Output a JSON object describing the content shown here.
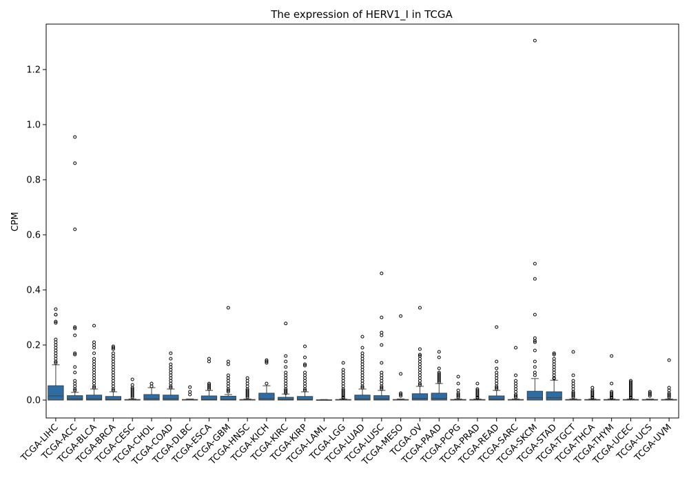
{
  "chart_data": {
    "type": "box",
    "title": "The expression of HERV1_I in TCGA",
    "xlabel": "",
    "ylabel": "CPM",
    "ylim": [
      -0.065,
      1.365
    ],
    "yticks": [
      0.0,
      0.2,
      0.4,
      0.6,
      0.8,
      1.0,
      1.2
    ],
    "ytick_labels": [
      "0.0",
      "0.2",
      "0.4",
      "0.6",
      "0.8",
      "1.0",
      "1.2"
    ],
    "grid": false,
    "box_color": "#2e6da4",
    "categories": [
      "TCGA-LIHC",
      "TCGA-ACC",
      "TCGA-BLCA",
      "TCGA-BRCA",
      "TCGA-CESC",
      "TCGA-CHOL",
      "TCGA-COAD",
      "TCGA-DLBC",
      "TCGA-ESCA",
      "TCGA-GBM",
      "TCGA-HNSC",
      "TCGA-KICH",
      "TCGA-KIRC",
      "TCGA-KIRP",
      "TCGA-LAML",
      "TCGA-LGG",
      "TCGA-LUAD",
      "TCGA-LUSC",
      "TCGA-MESO",
      "TCGA-OV",
      "TCGA-PAAD",
      "TCGA-PCPG",
      "TCGA-PRAD",
      "TCGA-READ",
      "TCGA-SARC",
      "TCGA-SKCM",
      "TCGA-STAD",
      "TCGA-TGCT",
      "TCGA-THCA",
      "TCGA-THYM",
      "TCGA-UCEC",
      "TCGA-UCS",
      "TCGA-UVM"
    ],
    "boxes": [
      {
        "q1": 0.0,
        "median": 0.015,
        "q3": 0.052,
        "whisker_low": 0.0,
        "whisker_high": 0.128,
        "outliers": [
          0.33,
          0.31,
          0.31,
          0.285,
          0.28,
          0.22,
          0.21,
          0.2,
          0.19,
          0.18,
          0.17,
          0.16,
          0.15,
          0.14,
          0.135
        ]
      },
      {
        "q1": 0.0,
        "median": 0.004,
        "q3": 0.016,
        "whisker_low": 0.0,
        "whisker_high": 0.028,
        "outliers": [
          0.955,
          0.86,
          0.62,
          0.265,
          0.26,
          0.235,
          0.17,
          0.165,
          0.12,
          0.1,
          0.07,
          0.06,
          0.05,
          0.04,
          0.035
        ]
      },
      {
        "q1": 0.0,
        "median": 0.004,
        "q3": 0.018,
        "whisker_low": 0.0,
        "whisker_high": 0.04,
        "outliers": [
          0.27,
          0.21,
          0.2,
          0.19,
          0.17,
          0.15,
          0.14,
          0.13,
          0.12,
          0.11,
          0.1,
          0.09,
          0.08,
          0.07,
          0.06,
          0.05,
          0.045
        ]
      },
      {
        "q1": 0.0,
        "median": 0.002,
        "q3": 0.013,
        "whisker_low": 0.0,
        "whisker_high": 0.03,
        "outliers": [
          0.195,
          0.19,
          0.185,
          0.17,
          0.16,
          0.15,
          0.14,
          0.13,
          0.12,
          0.11,
          0.1,
          0.09,
          0.08,
          0.07,
          0.06,
          0.05,
          0.04,
          0.035
        ]
      },
      {
        "q1": 0.0,
        "median": 0.0,
        "q3": 0.002,
        "whisker_low": 0.0,
        "whisker_high": 0.004,
        "outliers": [
          0.075,
          0.055,
          0.045,
          0.04,
          0.035,
          0.03,
          0.025,
          0.02,
          0.015,
          0.01
        ]
      },
      {
        "q1": 0.0,
        "median": 0.005,
        "q3": 0.02,
        "whisker_low": 0.0,
        "whisker_high": 0.045,
        "outliers": [
          0.06,
          0.05
        ]
      },
      {
        "q1": 0.0,
        "median": 0.005,
        "q3": 0.018,
        "whisker_low": 0.0,
        "whisker_high": 0.04,
        "outliers": [
          0.17,
          0.15,
          0.13,
          0.12,
          0.11,
          0.1,
          0.09,
          0.08,
          0.07,
          0.06,
          0.05,
          0.045
        ]
      },
      {
        "q1": 0.0,
        "median": 0.0,
        "q3": 0.002,
        "whisker_low": 0.0,
        "whisker_high": 0.004,
        "outliers": [
          0.047,
          0.03,
          0.02
        ]
      },
      {
        "q1": 0.0,
        "median": 0.002,
        "q3": 0.015,
        "whisker_low": 0.0,
        "whisker_high": 0.035,
        "outliers": [
          0.15,
          0.14,
          0.06,
          0.055,
          0.05,
          0.045,
          0.04
        ]
      },
      {
        "q1": 0.0,
        "median": 0.002,
        "q3": 0.014,
        "whisker_low": 0.0,
        "whisker_high": 0.02,
        "outliers": [
          0.335,
          0.14,
          0.13,
          0.09,
          0.08,
          0.07,
          0.06,
          0.05,
          0.04,
          0.035,
          0.03
        ]
      },
      {
        "q1": 0.0,
        "median": 0.0,
        "q3": 0.002,
        "whisker_low": 0.0,
        "whisker_high": 0.004,
        "outliers": [
          0.08,
          0.07,
          0.06,
          0.05,
          0.04,
          0.035,
          0.03,
          0.025,
          0.02,
          0.015,
          0.01
        ]
      },
      {
        "q1": 0.0,
        "median": 0.005,
        "q3": 0.025,
        "whisker_low": 0.0,
        "whisker_high": 0.052,
        "outliers": [
          0.145,
          0.14,
          0.135,
          0.06
        ]
      },
      {
        "q1": 0.0,
        "median": 0.002,
        "q3": 0.01,
        "whisker_low": 0.0,
        "whisker_high": 0.022,
        "outliers": [
          0.278,
          0.16,
          0.14,
          0.12,
          0.1,
          0.09,
          0.08,
          0.07,
          0.06,
          0.05,
          0.04,
          0.035,
          0.03,
          0.025
        ]
      },
      {
        "q1": 0.0,
        "median": 0.002,
        "q3": 0.013,
        "whisker_low": 0.0,
        "whisker_high": 0.03,
        "outliers": [
          0.195,
          0.155,
          0.13,
          0.125,
          0.1,
          0.09,
          0.08,
          0.07,
          0.06,
          0.05,
          0.04,
          0.035
        ]
      },
      {
        "q1": 0.0,
        "median": 0.0,
        "q3": 0.001,
        "whisker_low": 0.0,
        "whisker_high": 0.002,
        "outliers": []
      },
      {
        "q1": 0.0,
        "median": 0.0,
        "q3": 0.002,
        "whisker_low": 0.0,
        "whisker_high": 0.004,
        "outliers": [
          0.135,
          0.11,
          0.1,
          0.09,
          0.08,
          0.07,
          0.06,
          0.05,
          0.04,
          0.035,
          0.03,
          0.025,
          0.02,
          0.015,
          0.01,
          0.008
        ]
      },
      {
        "q1": 0.0,
        "median": 0.004,
        "q3": 0.018,
        "whisker_low": 0.0,
        "whisker_high": 0.04,
        "outliers": [
          0.23,
          0.19,
          0.17,
          0.16,
          0.15,
          0.14,
          0.13,
          0.12,
          0.11,
          0.1,
          0.09,
          0.08,
          0.07,
          0.06,
          0.05,
          0.045
        ]
      },
      {
        "q1": 0.0,
        "median": 0.004,
        "q3": 0.016,
        "whisker_low": 0.0,
        "whisker_high": 0.035,
        "outliers": [
          0.46,
          0.3,
          0.245,
          0.235,
          0.2,
          0.135,
          0.1,
          0.09,
          0.08,
          0.07,
          0.06,
          0.05,
          0.045,
          0.04
        ]
      },
      {
        "q1": 0.0,
        "median": 0.0,
        "q3": 0.002,
        "whisker_low": 0.0,
        "whisker_high": 0.004,
        "outliers": [
          0.305,
          0.095,
          0.025,
          0.02,
          0.015
        ]
      },
      {
        "q1": 0.0,
        "median": 0.006,
        "q3": 0.023,
        "whisker_low": 0.0,
        "whisker_high": 0.05,
        "outliers": [
          0.335,
          0.185,
          0.165,
          0.16,
          0.15,
          0.14,
          0.13,
          0.12,
          0.11,
          0.1,
          0.09,
          0.08,
          0.07,
          0.06,
          0.055
        ]
      },
      {
        "q1": 0.0,
        "median": 0.006,
        "q3": 0.025,
        "whisker_low": 0.0,
        "whisker_high": 0.06,
        "outliers": [
          0.175,
          0.155,
          0.115,
          0.1,
          0.095,
          0.09,
          0.085,
          0.08,
          0.075,
          0.07,
          0.065
        ]
      },
      {
        "q1": 0.0,
        "median": 0.0,
        "q3": 0.002,
        "whisker_low": 0.0,
        "whisker_high": 0.004,
        "outliers": [
          0.085,
          0.06,
          0.035,
          0.025,
          0.02,
          0.015,
          0.01
        ]
      },
      {
        "q1": 0.0,
        "median": 0.0,
        "q3": 0.002,
        "whisker_low": 0.0,
        "whisker_high": 0.004,
        "outliers": [
          0.06,
          0.04,
          0.035,
          0.03,
          0.025,
          0.02,
          0.015,
          0.01,
          0.008
        ]
      },
      {
        "q1": 0.0,
        "median": 0.003,
        "q3": 0.015,
        "whisker_low": 0.0,
        "whisker_high": 0.035,
        "outliers": [
          0.265,
          0.14,
          0.115,
          0.1,
          0.09,
          0.08,
          0.07,
          0.06,
          0.05,
          0.045,
          0.04
        ]
      },
      {
        "q1": 0.0,
        "median": 0.0,
        "q3": 0.002,
        "whisker_low": 0.0,
        "whisker_high": 0.004,
        "outliers": [
          0.19,
          0.09,
          0.07,
          0.06,
          0.05,
          0.04,
          0.03,
          0.02,
          0.015,
          0.01
        ]
      },
      {
        "q1": 0.0,
        "median": 0.008,
        "q3": 0.032,
        "whisker_low": 0.0,
        "whisker_high": 0.078,
        "outliers": [
          1.305,
          0.495,
          0.44,
          0.31,
          0.225,
          0.215,
          0.21,
          0.18,
          0.14,
          0.12,
          0.1,
          0.09
        ]
      },
      {
        "q1": 0.0,
        "median": 0.008,
        "q3": 0.03,
        "whisker_low": 0.0,
        "whisker_high": 0.072,
        "outliers": [
          0.17,
          0.165,
          0.15,
          0.14,
          0.13,
          0.12,
          0.11,
          0.1,
          0.09,
          0.08,
          0.078
        ]
      },
      {
        "q1": 0.0,
        "median": 0.0,
        "q3": 0.002,
        "whisker_low": 0.0,
        "whisker_high": 0.004,
        "outliers": [
          0.175,
          0.09,
          0.07,
          0.06,
          0.05,
          0.04,
          0.03,
          0.025,
          0.02,
          0.015,
          0.01
        ]
      },
      {
        "q1": 0.0,
        "median": 0.0,
        "q3": 0.002,
        "whisker_low": 0.0,
        "whisker_high": 0.004,
        "outliers": [
          0.045,
          0.035,
          0.03,
          0.025,
          0.02,
          0.015,
          0.01,
          0.008
        ]
      },
      {
        "q1": 0.0,
        "median": 0.0,
        "q3": 0.002,
        "whisker_low": 0.0,
        "whisker_high": 0.004,
        "outliers": [
          0.16,
          0.06,
          0.03,
          0.025,
          0.02,
          0.015,
          0.01,
          0.008
        ]
      },
      {
        "q1": 0.0,
        "median": 0.0,
        "q3": 0.002,
        "whisker_low": 0.0,
        "whisker_high": 0.004,
        "outliers": [
          0.07,
          0.065,
          0.06,
          0.055,
          0.05,
          0.045,
          0.04,
          0.035,
          0.03,
          0.025,
          0.02,
          0.015,
          0.01,
          0.008
        ]
      },
      {
        "q1": 0.0,
        "median": 0.0,
        "q3": 0.002,
        "whisker_low": 0.0,
        "whisker_high": 0.004,
        "outliers": [
          0.03,
          0.025,
          0.02,
          0.015
        ]
      },
      {
        "q1": 0.0,
        "median": 0.0,
        "q3": 0.002,
        "whisker_low": 0.0,
        "whisker_high": 0.004,
        "outliers": [
          0.145,
          0.045,
          0.035,
          0.025,
          0.02,
          0.015,
          0.01
        ]
      }
    ]
  }
}
